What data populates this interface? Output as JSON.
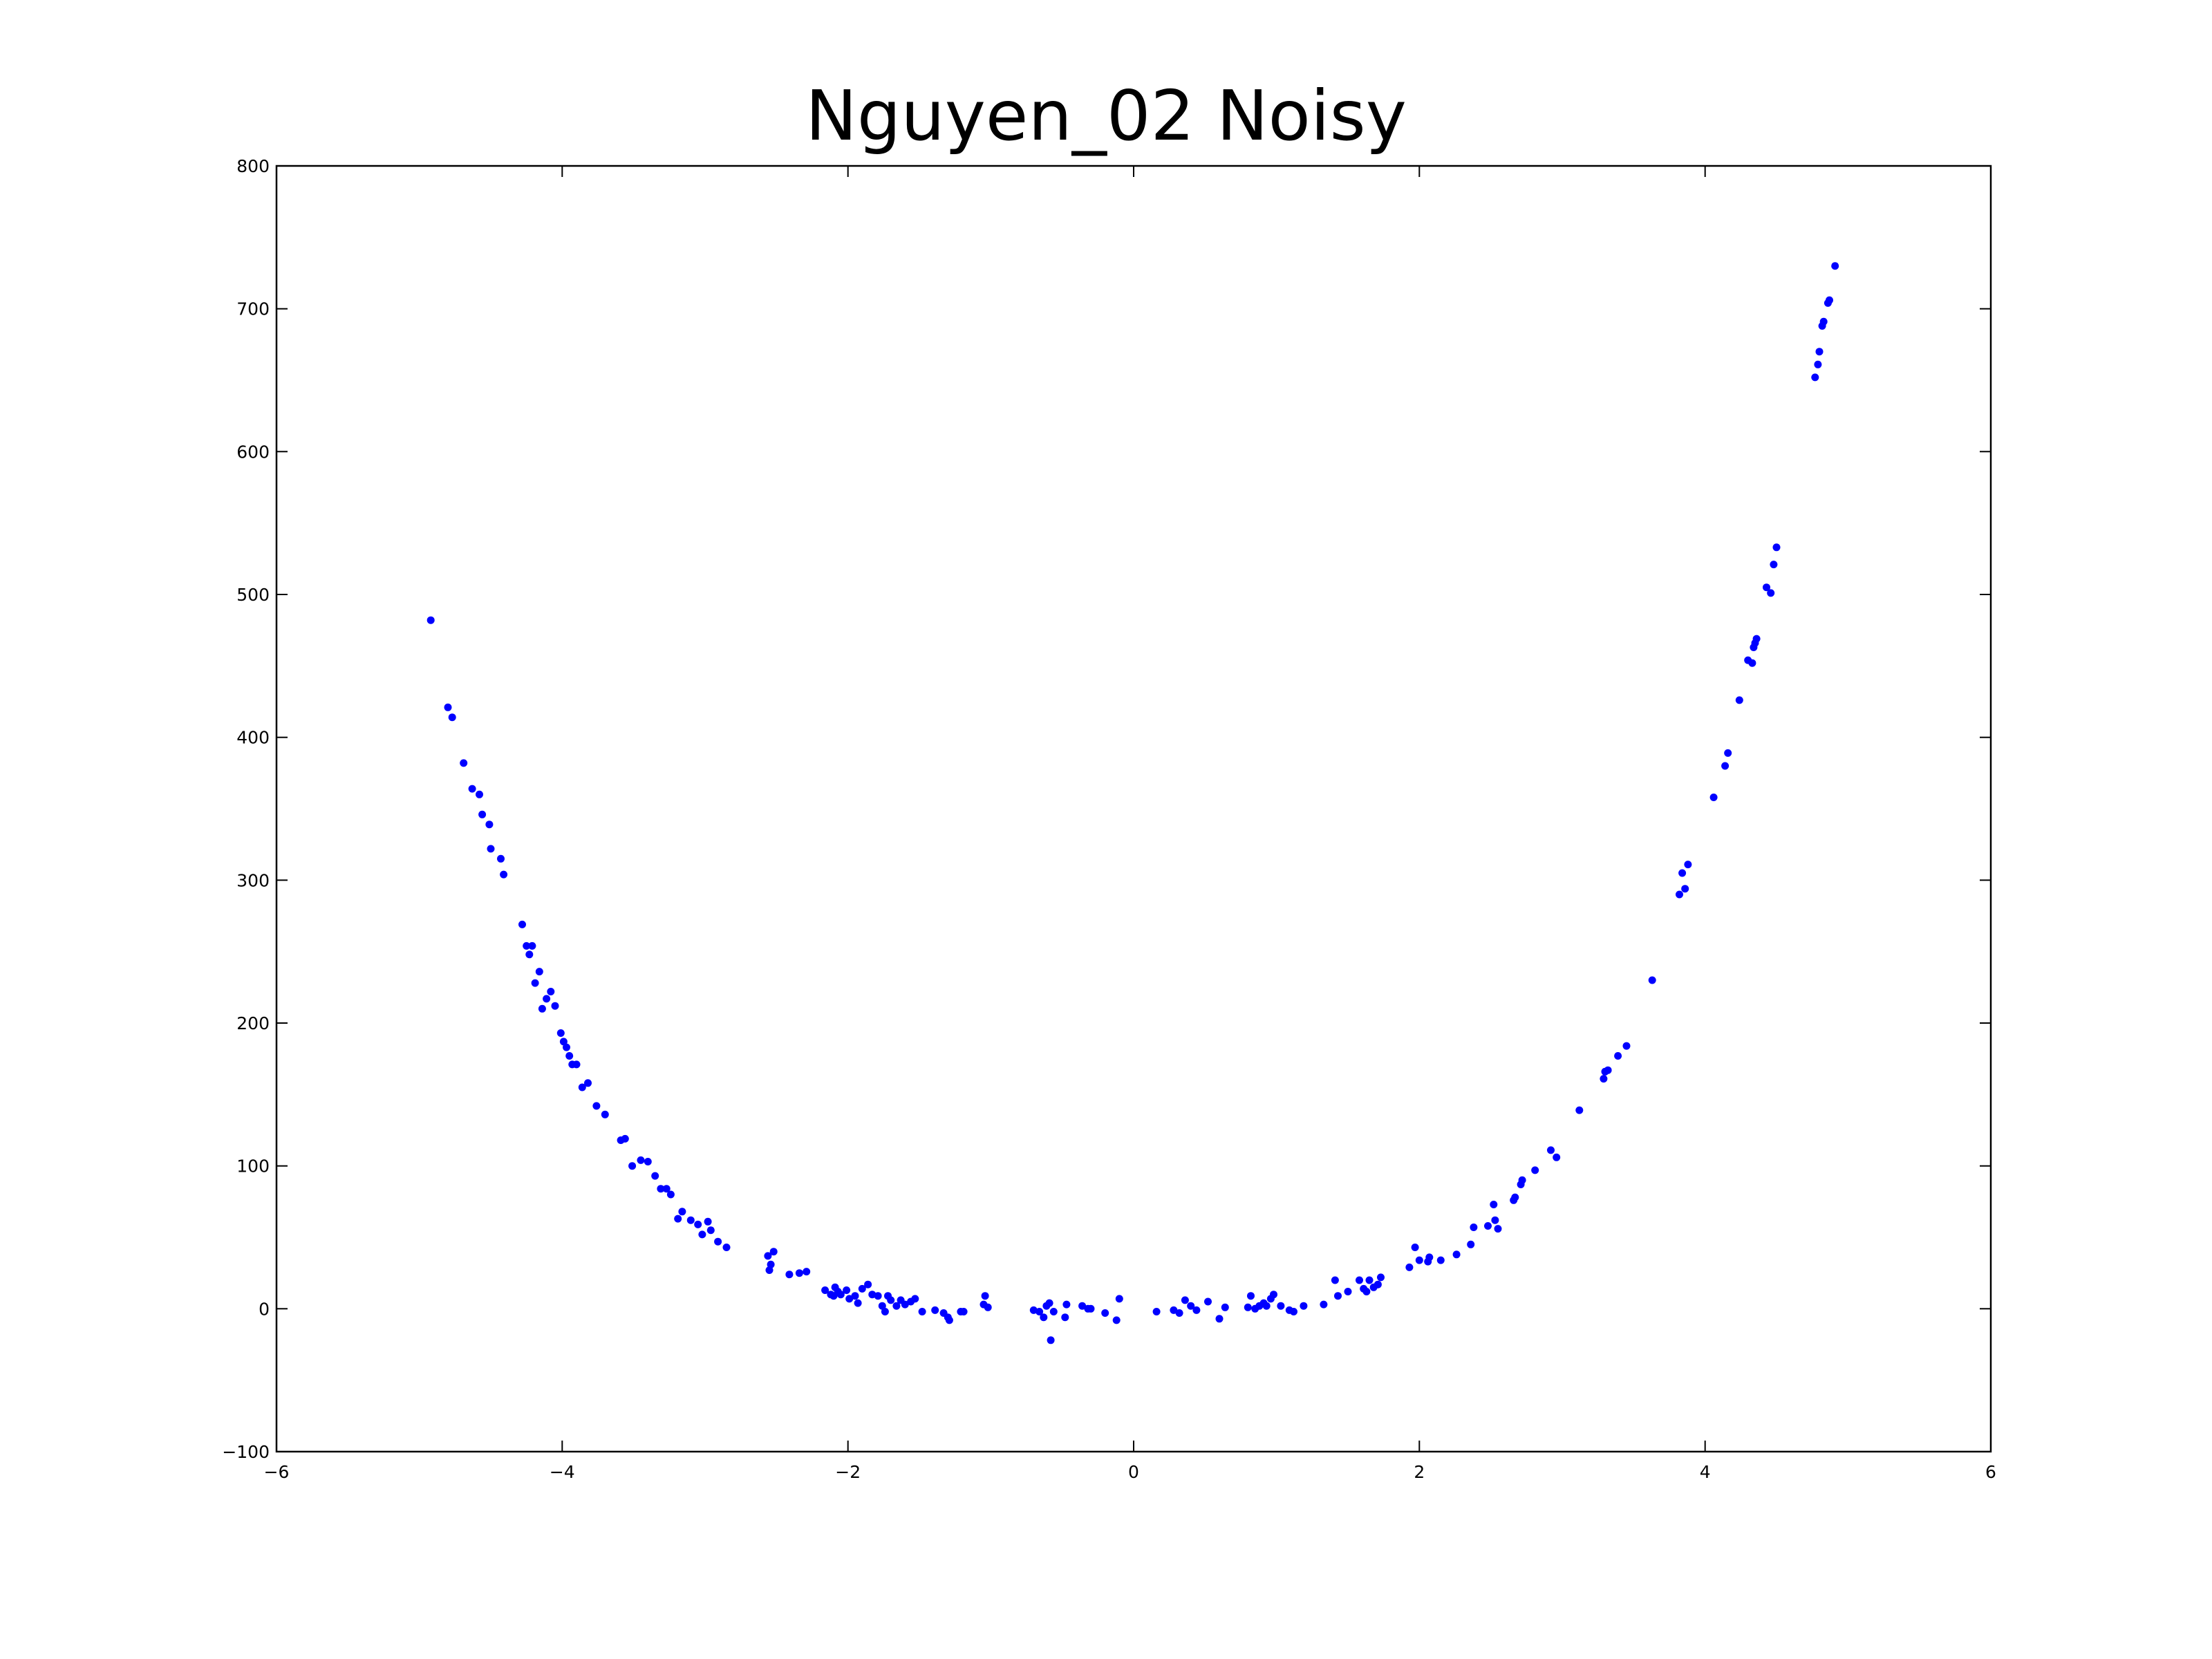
{
  "chart_data": {
    "type": "scatter",
    "title": "Nguyen_02 Noisy",
    "xlabel": "",
    "ylabel": "",
    "xlim": [
      -6,
      6
    ],
    "ylim": [
      -100,
      800
    ],
    "grid": false,
    "x_ticks": [
      -6,
      -4,
      -2,
      0,
      2,
      4,
      6
    ],
    "x_tick_labels": [
      "−6",
      "−4",
      "−2",
      "0",
      "2",
      "4",
      "6"
    ],
    "y_ticks": [
      -100,
      0,
      100,
      200,
      300,
      400,
      500,
      600,
      700,
      800
    ],
    "y_tick_labels": [
      "−100",
      "0",
      "100",
      "200",
      "300",
      "400",
      "500",
      "600",
      "700",
      "800"
    ],
    "point_color": "#0000ff",
    "series": [
      {
        "points": [
          [
            -4.92,
            482
          ],
          [
            -4.8,
            421
          ],
          [
            -4.77,
            414
          ],
          [
            -4.69,
            382
          ],
          [
            -4.63,
            364
          ],
          [
            -4.58,
            360
          ],
          [
            -4.56,
            346
          ],
          [
            -4.51,
            339
          ],
          [
            -4.5,
            322
          ],
          [
            -4.43,
            315
          ],
          [
            -4.41,
            304
          ],
          [
            -4.28,
            269
          ],
          [
            -4.25,
            254
          ],
          [
            -4.23,
            248
          ],
          [
            -4.21,
            254
          ],
          [
            -4.19,
            228
          ],
          [
            -4.16,
            236
          ],
          [
            -4.14,
            210
          ],
          [
            -4.11,
            217
          ],
          [
            -4.08,
            222
          ],
          [
            -4.05,
            212
          ],
          [
            -4.01,
            193
          ],
          [
            -3.99,
            187
          ],
          [
            -3.97,
            183
          ],
          [
            -3.95,
            177
          ],
          [
            -3.93,
            171
          ],
          [
            -3.9,
            171
          ],
          [
            -3.86,
            155
          ],
          [
            -3.82,
            158
          ],
          [
            -3.76,
            142
          ],
          [
            -3.7,
            136
          ],
          [
            -3.59,
            118
          ],
          [
            -3.56,
            119
          ],
          [
            -3.51,
            100
          ],
          [
            -3.45,
            104
          ],
          [
            -3.4,
            103
          ],
          [
            -3.35,
            93
          ],
          [
            -3.31,
            84
          ],
          [
            -3.27,
            84
          ],
          [
            -3.24,
            80
          ],
          [
            -3.19,
            63
          ],
          [
            -3.16,
            68
          ],
          [
            -3.1,
            62
          ],
          [
            -3.05,
            59
          ],
          [
            -3.02,
            52
          ],
          [
            -2.98,
            61
          ],
          [
            -2.96,
            55
          ],
          [
            -2.91,
            47
          ],
          [
            -2.85,
            43
          ],
          [
            -2.56,
            37
          ],
          [
            -2.55,
            27
          ],
          [
            -2.54,
            31
          ],
          [
            -2.52,
            40
          ],
          [
            -2.41,
            24
          ],
          [
            -2.34,
            25
          ],
          [
            -2.29,
            26
          ],
          [
            -2.16,
            13
          ],
          [
            -2.12,
            10
          ],
          [
            -2.1,
            9
          ],
          [
            -2.09,
            15
          ],
          [
            -2.07,
            12
          ],
          [
            -2.05,
            10
          ],
          [
            -2.01,
            13
          ],
          [
            -1.99,
            7
          ],
          [
            -1.95,
            9
          ],
          [
            -1.93,
            4
          ],
          [
            -1.9,
            14
          ],
          [
            -1.86,
            17
          ],
          [
            -1.83,
            10
          ],
          [
            -1.79,
            9
          ],
          [
            -1.76,
            2
          ],
          [
            -1.74,
            -2
          ],
          [
            -1.72,
            9
          ],
          [
            -1.7,
            6
          ],
          [
            -1.66,
            2
          ],
          [
            -1.63,
            6
          ],
          [
            -1.6,
            3
          ],
          [
            -1.56,
            5
          ],
          [
            -1.53,
            7
          ],
          [
            -1.48,
            -2
          ],
          [
            -1.39,
            -1
          ],
          [
            -1.33,
            -3
          ],
          [
            -1.3,
            -6
          ],
          [
            -1.29,
            -8
          ],
          [
            -1.21,
            -2
          ],
          [
            -1.19,
            -2
          ],
          [
            -1.05,
            3
          ],
          [
            -1.04,
            9
          ],
          [
            -1.02,
            1
          ],
          [
            -0.7,
            -1
          ],
          [
            -0.66,
            -2
          ],
          [
            -0.63,
            -6
          ],
          [
            -0.61,
            2
          ],
          [
            -0.59,
            4
          ],
          [
            -0.58,
            -22
          ],
          [
            -0.56,
            -2
          ],
          [
            -0.48,
            -6
          ],
          [
            -0.47,
            3
          ],
          [
            -0.36,
            2
          ],
          [
            -0.32,
            0
          ],
          [
            -0.3,
            0
          ],
          [
            -0.2,
            -3
          ],
          [
            -0.12,
            -8
          ],
          [
            -0.1,
            7
          ],
          [
            0.16,
            -2
          ],
          [
            0.28,
            -1
          ],
          [
            0.32,
            -3
          ],
          [
            0.36,
            6
          ],
          [
            0.4,
            2
          ],
          [
            0.44,
            -1
          ],
          [
            0.52,
            5
          ],
          [
            0.6,
            -7
          ],
          [
            0.64,
            1
          ],
          [
            0.8,
            1
          ],
          [
            0.82,
            9
          ],
          [
            0.85,
            0
          ],
          [
            0.88,
            2
          ],
          [
            0.91,
            4
          ],
          [
            0.93,
            2
          ],
          [
            0.96,
            7
          ],
          [
            0.98,
            10
          ],
          [
            1.03,
            2
          ],
          [
            1.09,
            -1
          ],
          [
            1.12,
            -2
          ],
          [
            1.19,
            2
          ],
          [
            1.33,
            3
          ],
          [
            1.41,
            20
          ],
          [
            1.43,
            9
          ],
          [
            1.5,
            12
          ],
          [
            1.58,
            20
          ],
          [
            1.61,
            14
          ],
          [
            1.63,
            12
          ],
          [
            1.65,
            20
          ],
          [
            1.68,
            15
          ],
          [
            1.71,
            17
          ],
          [
            1.73,
            22
          ],
          [
            1.93,
            29
          ],
          [
            1.97,
            43
          ],
          [
            2.0,
            34
          ],
          [
            2.06,
            33
          ],
          [
            2.07,
            36
          ],
          [
            2.15,
            34
          ],
          [
            2.26,
            38
          ],
          [
            2.36,
            45
          ],
          [
            2.38,
            57
          ],
          [
            2.48,
            58
          ],
          [
            2.52,
            73
          ],
          [
            2.53,
            62
          ],
          [
            2.55,
            56
          ],
          [
            2.66,
            76
          ],
          [
            2.67,
            78
          ],
          [
            2.71,
            87
          ],
          [
            2.72,
            90
          ],
          [
            2.81,
            97
          ],
          [
            2.92,
            111
          ],
          [
            2.96,
            106
          ],
          [
            3.12,
            139
          ],
          [
            3.29,
            161
          ],
          [
            3.3,
            166
          ],
          [
            3.32,
            167
          ],
          [
            3.39,
            177
          ],
          [
            3.45,
            184
          ],
          [
            3.63,
            230
          ],
          [
            3.82,
            290
          ],
          [
            3.84,
            305
          ],
          [
            3.86,
            294
          ],
          [
            3.88,
            311
          ],
          [
            4.06,
            358
          ],
          [
            4.14,
            380
          ],
          [
            4.16,
            389
          ],
          [
            4.24,
            426
          ],
          [
            4.3,
            454
          ],
          [
            4.33,
            452
          ],
          [
            4.34,
            463
          ],
          [
            4.35,
            466
          ],
          [
            4.36,
            469
          ],
          [
            4.43,
            505
          ],
          [
            4.46,
            501
          ],
          [
            4.48,
            521
          ],
          [
            4.5,
            533
          ],
          [
            4.77,
            652
          ],
          [
            4.79,
            661
          ],
          [
            4.8,
            670
          ],
          [
            4.82,
            688
          ],
          [
            4.83,
            691
          ],
          [
            4.86,
            704
          ],
          [
            4.87,
            706
          ],
          [
            4.91,
            730
          ]
        ]
      }
    ]
  }
}
